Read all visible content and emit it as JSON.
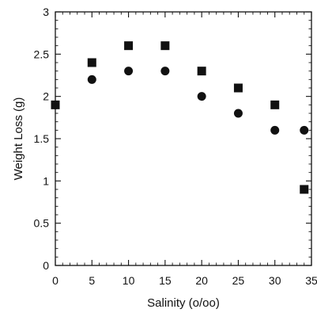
{
  "chart_data": {
    "type": "scatter",
    "title": "",
    "xlabel": "Salinity (o/oo)",
    "ylabel": "Weight Loss (g)",
    "xlim": [
      0,
      35
    ],
    "ylim": [
      0,
      3
    ],
    "x_ticks": [
      0,
      5,
      10,
      15,
      20,
      25,
      30,
      35
    ],
    "y_ticks": [
      0,
      0.5,
      1,
      1.5,
      2,
      2.5,
      3
    ],
    "x_tick_labels": [
      "0",
      "5",
      "10",
      "15",
      "20",
      "25",
      "30",
      "35"
    ],
    "y_tick_labels": [
      "0",
      "0.5",
      "1",
      "1.5",
      "2",
      "2.5",
      "3"
    ],
    "grid": false,
    "legend": "none",
    "series": [
      {
        "marker": "square",
        "color": "#111111",
        "points": [
          {
            "x": 0,
            "y": 1.9
          },
          {
            "x": 5,
            "y": 2.4
          },
          {
            "x": 10,
            "y": 2.6
          },
          {
            "x": 15,
            "y": 2.6
          },
          {
            "x": 20,
            "y": 2.3
          },
          {
            "x": 25,
            "y": 2.1
          },
          {
            "x": 30,
            "y": 1.9
          },
          {
            "x": 34,
            "y": 0.9
          }
        ]
      },
      {
        "marker": "circle",
        "color": "#111111",
        "points": [
          {
            "x": 0,
            "y": 1.9
          },
          {
            "x": 5,
            "y": 2.2
          },
          {
            "x": 10,
            "y": 2.3
          },
          {
            "x": 15,
            "y": 2.3
          },
          {
            "x": 20,
            "y": 2.0
          },
          {
            "x": 25,
            "y": 1.8
          },
          {
            "x": 30,
            "y": 1.6
          },
          {
            "x": 34,
            "y": 1.6
          }
        ]
      }
    ]
  }
}
